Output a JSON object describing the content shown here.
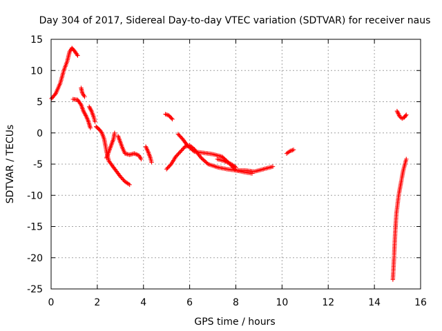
{
  "chart_data": {
    "type": "scatter",
    "title": "Day 304 of 2017, Sidereal Day-to-day VTEC variation (SDTVAR) for receiver naus",
    "xlabel": "GPS time / hours",
    "ylabel": "SDTVAR / TECUs",
    "xlim": [
      0,
      16
    ],
    "ylim": [
      -25,
      15
    ],
    "xticks": [
      "0",
      "2",
      "4",
      "6",
      "8",
      "10",
      "12",
      "14",
      "16"
    ],
    "yticks": [
      "-25",
      "-20",
      "-15",
      "-10",
      "-5",
      "0",
      "5",
      "10",
      "15"
    ],
    "grid": true,
    "marker": "+",
    "color": "#ff0000",
    "series": [
      {
        "segments": [
          [
            [
              0.02,
              5.5
            ],
            [
              0.2,
              6.3
            ],
            [
              0.4,
              8.0
            ],
            [
              0.55,
              10.0
            ],
            [
              0.7,
              11.5
            ],
            [
              0.8,
              13.0
            ],
            [
              0.9,
              13.6
            ],
            [
              1.0,
              13.2
            ],
            [
              1.15,
              12.4
            ]
          ],
          [
            [
              0.95,
              5.4
            ],
            [
              1.15,
              5.3
            ],
            [
              1.3,
              4.5
            ],
            [
              1.4,
              3.5
            ],
            [
              1.5,
              2.8
            ],
            [
              1.6,
              2.0
            ],
            [
              1.7,
              0.8
            ]
          ],
          [
            [
              1.3,
              7.2
            ],
            [
              1.35,
              6.4
            ],
            [
              1.45,
              5.8
            ]
          ],
          [
            [
              1.65,
              4.2
            ],
            [
              1.75,
              3.5
            ],
            [
              1.85,
              2.5
            ],
            [
              1.9,
              1.8
            ]
          ],
          [
            [
              1.95,
              1.0
            ],
            [
              2.1,
              0.5
            ],
            [
              2.2,
              0.0
            ],
            [
              2.3,
              -1.0
            ],
            [
              2.4,
              -3.0
            ],
            [
              2.5,
              -4.5
            ],
            [
              2.6,
              -5.0
            ],
            [
              2.8,
              -6.0
            ],
            [
              3.0,
              -7.0
            ],
            [
              3.2,
              -7.8
            ],
            [
              3.4,
              -8.3
            ]
          ],
          [
            [
              2.4,
              -4.0
            ],
            [
              2.5,
              -3.0
            ],
            [
              2.6,
              -2.0
            ],
            [
              2.7,
              -1.0
            ],
            [
              2.75,
              0.0
            ]
          ],
          [
            [
              2.9,
              -0.5
            ],
            [
              3.0,
              -1.5
            ],
            [
              3.1,
              -2.5
            ],
            [
              3.2,
              -3.3
            ],
            [
              3.4,
              -3.5
            ],
            [
              3.6,
              -3.3
            ],
            [
              3.8,
              -3.6
            ],
            [
              3.9,
              -4.2
            ]
          ],
          [
            [
              4.1,
              -2.2
            ],
            [
              4.2,
              -3.0
            ],
            [
              4.3,
              -4.0
            ],
            [
              4.35,
              -4.7
            ]
          ],
          [
            [
              4.95,
              3.0
            ],
            [
              5.1,
              2.8
            ],
            [
              5.25,
              2.2
            ]
          ],
          [
            [
              5.0,
              -5.8
            ],
            [
              5.2,
              -5.0
            ],
            [
              5.4,
              -3.8
            ],
            [
              5.6,
              -3.0
            ],
            [
              5.8,
              -2.2
            ],
            [
              6.0,
              -2.0
            ],
            [
              6.2,
              -2.6
            ],
            [
              6.5,
              -4.0
            ],
            [
              6.8,
              -5.0
            ],
            [
              7.2,
              -5.5
            ],
            [
              7.6,
              -5.8
            ],
            [
              8.0,
              -6.0
            ],
            [
              8.4,
              -6.0
            ],
            [
              8.8,
              -6.2
            ],
            [
              9.2,
              -5.8
            ],
            [
              9.6,
              -5.4
            ]
          ],
          [
            [
              5.5,
              -0.2
            ],
            [
              5.7,
              -1.0
            ],
            [
              5.9,
              -2.0
            ],
            [
              6.2,
              -3.0
            ],
            [
              6.6,
              -3.2
            ],
            [
              7.0,
              -3.4
            ],
            [
              7.4,
              -3.8
            ],
            [
              7.7,
              -4.8
            ],
            [
              8.0,
              -6.0
            ],
            [
              8.4,
              -6.3
            ],
            [
              8.7,
              -6.5
            ]
          ],
          [
            [
              7.2,
              -4.2
            ],
            [
              7.5,
              -4.5
            ],
            [
              7.8,
              -5.0
            ],
            [
              8.0,
              -5.5
            ]
          ],
          [
            [
              10.2,
              -3.3
            ],
            [
              10.35,
              -2.9
            ],
            [
              10.5,
              -2.7
            ]
          ],
          [
            [
              14.8,
              -23.5
            ],
            [
              14.85,
              -20.0
            ],
            [
              14.9,
              -16.0
            ],
            [
              14.95,
              -13.0
            ],
            [
              15.05,
              -10.0
            ],
            [
              15.15,
              -8.0
            ],
            [
              15.25,
              -6.0
            ],
            [
              15.38,
              -4.2
            ]
          ],
          [
            [
              14.98,
              3.5
            ],
            [
              15.1,
              2.6
            ],
            [
              15.2,
              2.3
            ],
            [
              15.3,
              2.5
            ],
            [
              15.38,
              2.9
            ]
          ]
        ]
      }
    ]
  }
}
